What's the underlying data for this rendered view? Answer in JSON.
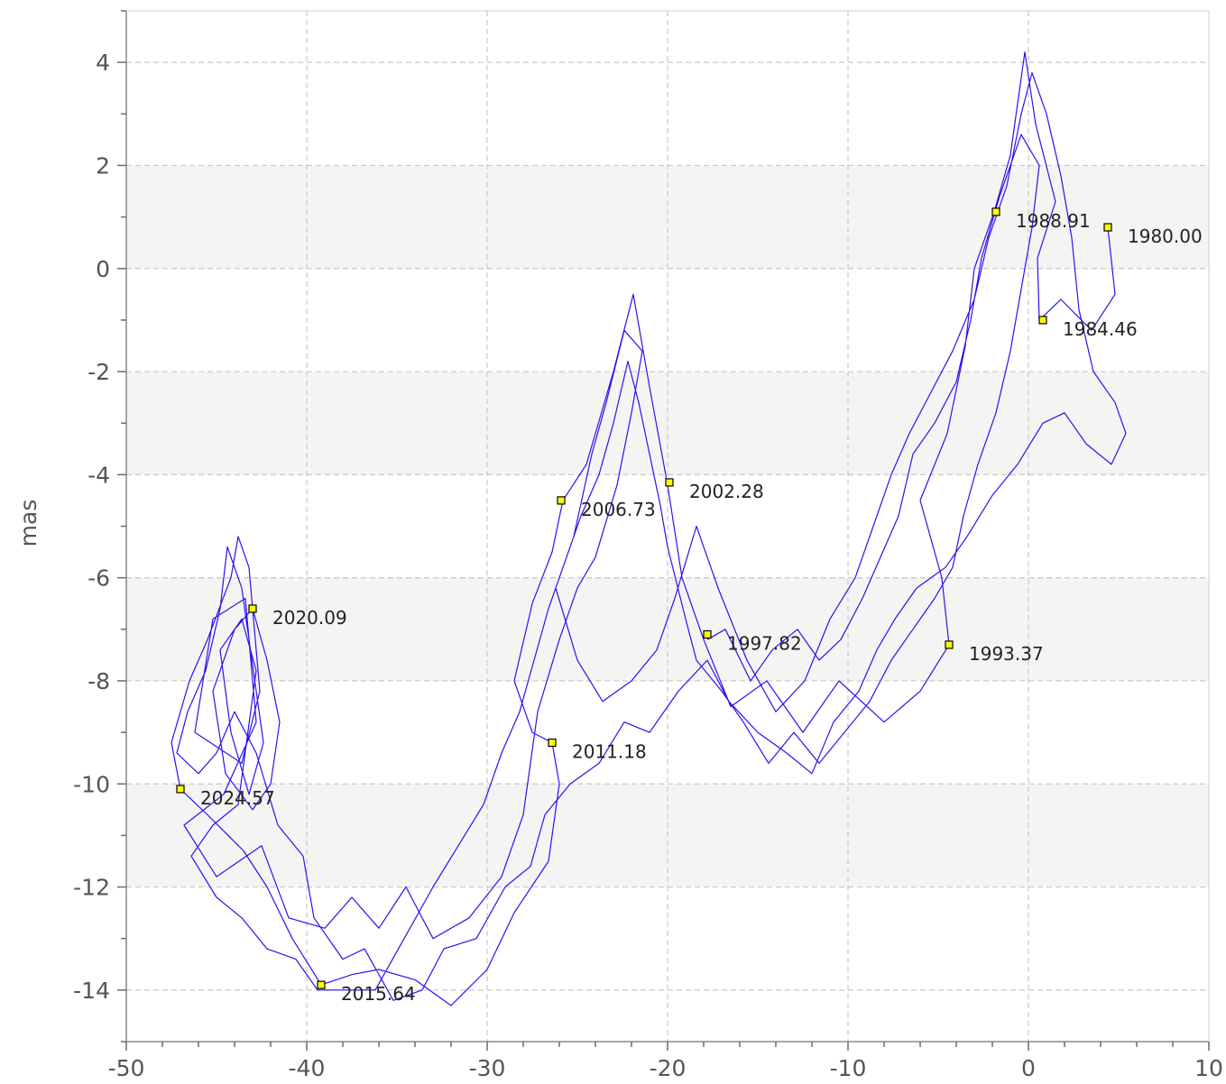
{
  "chart_data": {
    "type": "line",
    "title": "",
    "xlabel": "",
    "ylabel": "mas",
    "xlim": [
      -50,
      10
    ],
    "ylim": [
      -15,
      5
    ],
    "x_ticks": [
      -50,
      -40,
      -30,
      -20,
      -10,
      0,
      10
    ],
    "y_ticks": [
      4,
      2,
      0,
      -2,
      -4,
      -6,
      -8,
      -10,
      -12,
      -14
    ],
    "grid": true,
    "band_fill_color": "#f4f4f2",
    "series": [
      {
        "color": "#2a12f0",
        "path": [
          [
            4.4,
            0.8
          ],
          [
            4.8,
            -0.5
          ],
          [
            3.5,
            -1.2
          ],
          [
            1.8,
            -0.6
          ],
          [
            0.6,
            -1.0
          ],
          [
            0.5,
            0.2
          ],
          [
            1.5,
            1.3
          ],
          [
            0.4,
            2.8
          ],
          [
            -0.2,
            4.2
          ],
          [
            -1.0,
            2.2
          ],
          [
            -1.9,
            1.1
          ],
          [
            -3.0,
            0.0
          ],
          [
            -3.5,
            -1.5
          ],
          [
            -4.5,
            -3.2
          ],
          [
            -6.0,
            -4.5
          ],
          [
            -4.8,
            -6.0
          ],
          [
            -4.4,
            -7.3
          ],
          [
            -6.0,
            -8.2
          ],
          [
            -8.0,
            -8.8
          ],
          [
            -10.5,
            -8.0
          ],
          [
            -12.5,
            -9.0
          ],
          [
            -14.5,
            -8.0
          ],
          [
            -16.5,
            -8.5
          ],
          [
            -18.0,
            -7.2
          ],
          [
            -19.2,
            -6.0
          ],
          [
            -20.0,
            -4.2
          ],
          [
            -21.0,
            -2.3
          ],
          [
            -21.9,
            -0.5
          ],
          [
            -23.0,
            -2.0
          ],
          [
            -24.5,
            -3.8
          ],
          [
            -25.8,
            -4.5
          ],
          [
            -26.4,
            -5.5
          ],
          [
            -27.5,
            -6.5
          ],
          [
            -28.5,
            -8.0
          ],
          [
            -27.5,
            -9.0
          ],
          [
            -26.4,
            -9.2
          ],
          [
            -26.0,
            -10.0
          ],
          [
            -26.6,
            -11.5
          ],
          [
            -28.5,
            -12.5
          ],
          [
            -30.0,
            -13.6
          ],
          [
            -32.0,
            -14.3
          ],
          [
            -34.0,
            -13.8
          ],
          [
            -36.0,
            -13.6
          ],
          [
            -37.5,
            -13.7
          ],
          [
            -39.2,
            -13.9
          ],
          [
            -40.8,
            -13.0
          ],
          [
            -42.2,
            -12.0
          ],
          [
            -43.5,
            -11.3
          ],
          [
            -45.5,
            -10.6
          ],
          [
            -47.0,
            -10.1
          ],
          [
            -47.5,
            -9.2
          ],
          [
            -46.5,
            -8.0
          ],
          [
            -45.5,
            -7.2
          ],
          [
            -44.2,
            -6.0
          ],
          [
            -43.8,
            -5.2
          ],
          [
            -43.2,
            -5.8
          ],
          [
            -43.0,
            -6.6
          ],
          [
            -42.2,
            -7.6
          ],
          [
            -41.5,
            -8.8
          ],
          [
            -42.0,
            -10.0
          ],
          [
            -43.0,
            -10.5
          ],
          [
            -44.5,
            -9.8
          ],
          [
            -45.2,
            -8.2
          ],
          [
            -44.0,
            -7.0
          ],
          [
            -43.0,
            -6.6
          ],
          [
            -42.6,
            -8.2
          ],
          [
            -43.6,
            -9.6
          ],
          [
            -46.2,
            -9.0
          ],
          [
            -45.2,
            -6.8
          ],
          [
            -43.4,
            -6.4
          ],
          [
            -42.8,
            -8.8
          ],
          [
            -44.6,
            -10.2
          ],
          [
            -46.8,
            -10.8
          ],
          [
            -45.0,
            -11.8
          ],
          [
            -42.5,
            -11.2
          ],
          [
            -41.0,
            -12.6
          ],
          [
            -39.0,
            -12.8
          ],
          [
            -37.5,
            -12.2
          ],
          [
            -36.0,
            -12.8
          ],
          [
            -34.5,
            -12.0
          ],
          [
            -33.0,
            -13.0
          ],
          [
            -31.0,
            -12.6
          ],
          [
            -29.2,
            -11.8
          ],
          [
            -28.0,
            -10.6
          ],
          [
            -27.2,
            -8.6
          ],
          [
            -26.0,
            -7.2
          ],
          [
            -25.0,
            -6.2
          ],
          [
            -24.0,
            -5.6
          ],
          [
            -22.8,
            -4.2
          ],
          [
            -22.0,
            -2.8
          ],
          [
            -21.4,
            -1.6
          ],
          [
            -22.4,
            -1.2
          ],
          [
            -23.4,
            -2.6
          ],
          [
            -24.2,
            -3.6
          ],
          [
            -25.2,
            -5.2
          ],
          [
            -26.2,
            -6.2
          ],
          [
            -25.0,
            -7.6
          ],
          [
            -23.6,
            -8.4
          ],
          [
            -22.0,
            -8.0
          ],
          [
            -20.6,
            -7.4
          ],
          [
            -19.6,
            -6.4
          ],
          [
            -18.4,
            -5.0
          ],
          [
            -17.2,
            -6.2
          ],
          [
            -15.6,
            -7.6
          ],
          [
            -14.0,
            -8.6
          ],
          [
            -12.4,
            -8.0
          ],
          [
            -11.0,
            -6.8
          ],
          [
            -9.6,
            -6.0
          ],
          [
            -8.6,
            -5.0
          ],
          [
            -7.6,
            -4.0
          ],
          [
            -6.6,
            -3.2
          ],
          [
            -5.4,
            -2.4
          ],
          [
            -4.2,
            -1.6
          ],
          [
            -3.0,
            -0.6
          ],
          [
            -2.2,
            0.6
          ],
          [
            -1.2,
            1.6
          ],
          [
            -0.4,
            3.0
          ],
          [
            0.2,
            3.8
          ],
          [
            1.0,
            3.0
          ],
          [
            1.8,
            1.8
          ],
          [
            2.4,
            0.6
          ],
          [
            2.8,
            -0.8
          ],
          [
            3.6,
            -2.0
          ],
          [
            4.8,
            -2.6
          ],
          [
            5.4,
            -3.2
          ],
          [
            4.6,
            -3.8
          ],
          [
            3.2,
            -3.4
          ],
          [
            2.0,
            -2.8
          ],
          [
            0.8,
            -3.0
          ],
          [
            -0.6,
            -3.8
          ],
          [
            -2.0,
            -4.4
          ],
          [
            -3.4,
            -5.2
          ],
          [
            -4.6,
            -5.8
          ],
          [
            -6.2,
            -6.2
          ],
          [
            -7.4,
            -6.8
          ],
          [
            -8.4,
            -7.4
          ],
          [
            -9.4,
            -8.2
          ],
          [
            -10.8,
            -8.8
          ],
          [
            -12.0,
            -9.8
          ],
          [
            -13.4,
            -9.4
          ],
          [
            -15.0,
            -9.0
          ],
          [
            -16.6,
            -8.4
          ],
          [
            -17.8,
            -7.6
          ],
          [
            -19.4,
            -8.2
          ],
          [
            -21.0,
            -9.0
          ],
          [
            -22.4,
            -8.8
          ],
          [
            -23.8,
            -9.6
          ],
          [
            -25.4,
            -10.0
          ],
          [
            -26.8,
            -10.6
          ],
          [
            -27.6,
            -11.6
          ],
          [
            -29.0,
            -12.0
          ],
          [
            -30.6,
            -13.0
          ],
          [
            -32.4,
            -13.2
          ],
          [
            -33.6,
            -14.0
          ],
          [
            -35.2,
            -14.2
          ],
          [
            -36.8,
            -13.2
          ],
          [
            -38.0,
            -13.4
          ],
          [
            -39.6,
            -12.6
          ],
          [
            -40.2,
            -11.4
          ],
          [
            -41.6,
            -10.8
          ],
          [
            -42.8,
            -9.4
          ],
          [
            -44.0,
            -8.6
          ],
          [
            -45.0,
            -9.4
          ],
          [
            -46.0,
            -9.8
          ],
          [
            -47.2,
            -9.4
          ],
          [
            -46.6,
            -8.6
          ],
          [
            -45.6,
            -7.8
          ],
          [
            -44.8,
            -6.6
          ],
          [
            -44.4,
            -5.4
          ],
          [
            -43.6,
            -6.2
          ],
          [
            -43.2,
            -7.2
          ],
          [
            -42.4,
            -9.2
          ],
          [
            -43.2,
            -10.2
          ],
          [
            -44.2,
            -9.0
          ],
          [
            -44.8,
            -7.4
          ],
          [
            -43.6,
            -6.8
          ],
          [
            -42.8,
            -7.8
          ],
          [
            -43.8,
            -10.4
          ],
          [
            -45.2,
            -10.8
          ],
          [
            -46.4,
            -11.4
          ],
          [
            -45.0,
            -12.2
          ],
          [
            -43.6,
            -12.6
          ],
          [
            -42.2,
            -13.2
          ],
          [
            -40.6,
            -13.4
          ],
          [
            -39.4,
            -14.0
          ],
          [
            -37.8,
            -14.0
          ],
          [
            -36.2,
            -14.0
          ],
          [
            -34.6,
            -13.0
          ],
          [
            -33.0,
            -12.0
          ],
          [
            -31.6,
            -11.2
          ],
          [
            -30.2,
            -10.4
          ],
          [
            -29.2,
            -9.4
          ],
          [
            -28.2,
            -8.6
          ],
          [
            -27.4,
            -7.6
          ],
          [
            -26.6,
            -6.6
          ],
          [
            -25.6,
            -5.6
          ],
          [
            -24.8,
            -4.8
          ],
          [
            -23.8,
            -4.0
          ],
          [
            -23.0,
            -3.0
          ],
          [
            -22.2,
            -1.8
          ],
          [
            -21.6,
            -2.6
          ],
          [
            -21.0,
            -3.6
          ],
          [
            -20.4,
            -4.6
          ],
          [
            -20.0,
            -5.4
          ],
          [
            -19.0,
            -6.8
          ],
          [
            -18.4,
            -7.6
          ],
          [
            -17.0,
            -8.2
          ],
          [
            -15.8,
            -8.8
          ],
          [
            -14.4,
            -9.6
          ],
          [
            -13.0,
            -9.0
          ],
          [
            -11.6,
            -9.6
          ],
          [
            -10.2,
            -9.0
          ],
          [
            -8.8,
            -8.4
          ],
          [
            -7.6,
            -7.6
          ],
          [
            -6.4,
            -7.0
          ],
          [
            -5.2,
            -6.4
          ],
          [
            -4.2,
            -5.8
          ],
          [
            -3.6,
            -4.8
          ],
          [
            -2.8,
            -3.8
          ],
          [
            -1.8,
            -2.8
          ],
          [
            -1.0,
            -1.6
          ],
          [
            -0.4,
            -0.4
          ],
          [
            0.2,
            0.8
          ],
          [
            0.6,
            2.0
          ],
          [
            -0.4,
            2.6
          ],
          [
            -1.6,
            1.4
          ],
          [
            -2.6,
            0.2
          ],
          [
            -3.2,
            -1.0
          ],
          [
            -4.0,
            -2.2
          ],
          [
            -5.2,
            -3.0
          ],
          [
            -6.4,
            -3.6
          ],
          [
            -7.2,
            -4.8
          ],
          [
            -8.2,
            -5.6
          ],
          [
            -9.2,
            -6.4
          ],
          [
            -10.4,
            -7.2
          ],
          [
            -11.6,
            -7.6
          ],
          [
            -12.8,
            -7.0
          ],
          [
            -14.2,
            -7.4
          ],
          [
            -15.4,
            -8.0
          ],
          [
            -16.8,
            -7.0
          ],
          [
            -17.8,
            -7.2
          ]
        ]
      }
    ],
    "epochs": [
      {
        "x": 4.4,
        "y": 0.8,
        "label": "1980.00"
      },
      {
        "x": -1.8,
        "y": 1.1,
        "label": "1988.91"
      },
      {
        "x": 0.8,
        "y": -1.0,
        "label": "1984.46"
      },
      {
        "x": -4.4,
        "y": -7.3,
        "label": "1993.37"
      },
      {
        "x": -17.8,
        "y": -7.1,
        "label": "1997.82"
      },
      {
        "x": -19.9,
        "y": -4.15,
        "label": "2002.28"
      },
      {
        "x": -25.9,
        "y": -4.5,
        "label": "2006.73"
      },
      {
        "x": -26.4,
        "y": -9.2,
        "label": "2011.18"
      },
      {
        "x": -39.2,
        "y": -13.9,
        "label": "2015.64"
      },
      {
        "x": -43.0,
        "y": -6.6,
        "label": "2020.09"
      },
      {
        "x": -47.0,
        "y": -10.1,
        "label": "2024.57"
      }
    ]
  }
}
